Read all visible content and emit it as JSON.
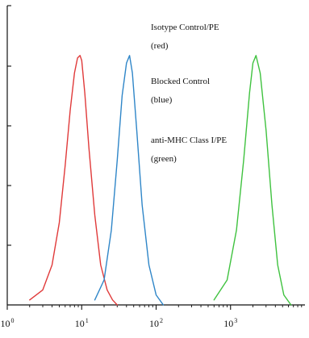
{
  "chart_data": {
    "type": "line",
    "title": "",
    "xlabel": "",
    "ylabel": "",
    "xscale": "log",
    "xlim": [
      1,
      10000
    ],
    "ylim": [
      0,
      1.2
    ],
    "grid": false,
    "legend": "none",
    "x_ticks": [
      {
        "base": "10",
        "exp": "0",
        "value": 1
      },
      {
        "base": "10",
        "exp": "1",
        "value": 10
      },
      {
        "base": "10",
        "exp": "2",
        "value": 100
      },
      {
        "base": "10",
        "exp": "3",
        "value": 1000
      }
    ],
    "annotations": [
      {
        "lines": [
          "Isotype Control/PE",
          "(red)"
        ]
      },
      {
        "lines": [
          "Blocked Control",
          "(blue)"
        ]
      },
      {
        "lines": [
          "anti-MHC Class I/PE",
          "(green)"
        ]
      }
    ],
    "series": [
      {
        "color": "#e03a3a",
        "x": [
          2.0,
          3.0,
          4.0,
          5.0,
          6.0,
          7.0,
          8.0,
          8.8,
          9.5,
          10.0,
          11.0,
          12.5,
          15.0,
          18.0,
          22.0,
          26.0,
          30.0
        ],
        "y": [
          0.02,
          0.06,
          0.16,
          0.33,
          0.56,
          0.78,
          0.93,
          0.99,
          1.0,
          0.98,
          0.85,
          0.63,
          0.36,
          0.16,
          0.06,
          0.02,
          0.0
        ]
      },
      {
        "color": "#2f86c8",
        "x": [
          15.0,
          20.0,
          25.0,
          30.0,
          35.0,
          40.0,
          44.0,
          48.0,
          55.0,
          65.0,
          80.0,
          100.0,
          125.0
        ],
        "y": [
          0.02,
          0.1,
          0.3,
          0.58,
          0.84,
          0.97,
          1.0,
          0.93,
          0.7,
          0.4,
          0.16,
          0.04,
          0.0
        ]
      },
      {
        "color": "#3fc23f",
        "x": [
          600.0,
          900.0,
          1200.0,
          1500.0,
          1800.0,
          2000.0,
          2200.0,
          2500.0,
          3000.0,
          3600.0,
          4300.0,
          5200.0,
          6500.0
        ],
        "y": [
          0.02,
          0.1,
          0.3,
          0.58,
          0.85,
          0.97,
          1.0,
          0.93,
          0.7,
          0.4,
          0.16,
          0.04,
          0.0
        ]
      }
    ]
  }
}
